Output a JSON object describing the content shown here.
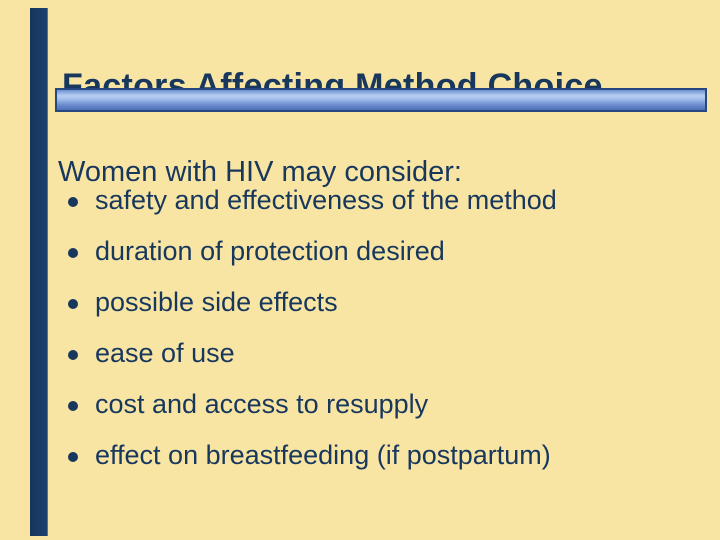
{
  "slide": {
    "title": "Factors Affecting Method Choice",
    "intro": "Women with HIV may consider:",
    "bullets": [
      "safety and effectiveness of the method",
      "duration of protection desired",
      "possible side effects",
      "ease of use",
      "cost and access to resupply",
      "effect on breastfeeding (if postpartum)"
    ],
    "colors": {
      "background": "#F8E5A3",
      "text": "#17375D",
      "left_accent_bar": "#1B3A66",
      "rule_border": "#27477E",
      "rule_highlight": "#B7CFF2",
      "rule_shadow": "#4D6FB6"
    }
  }
}
